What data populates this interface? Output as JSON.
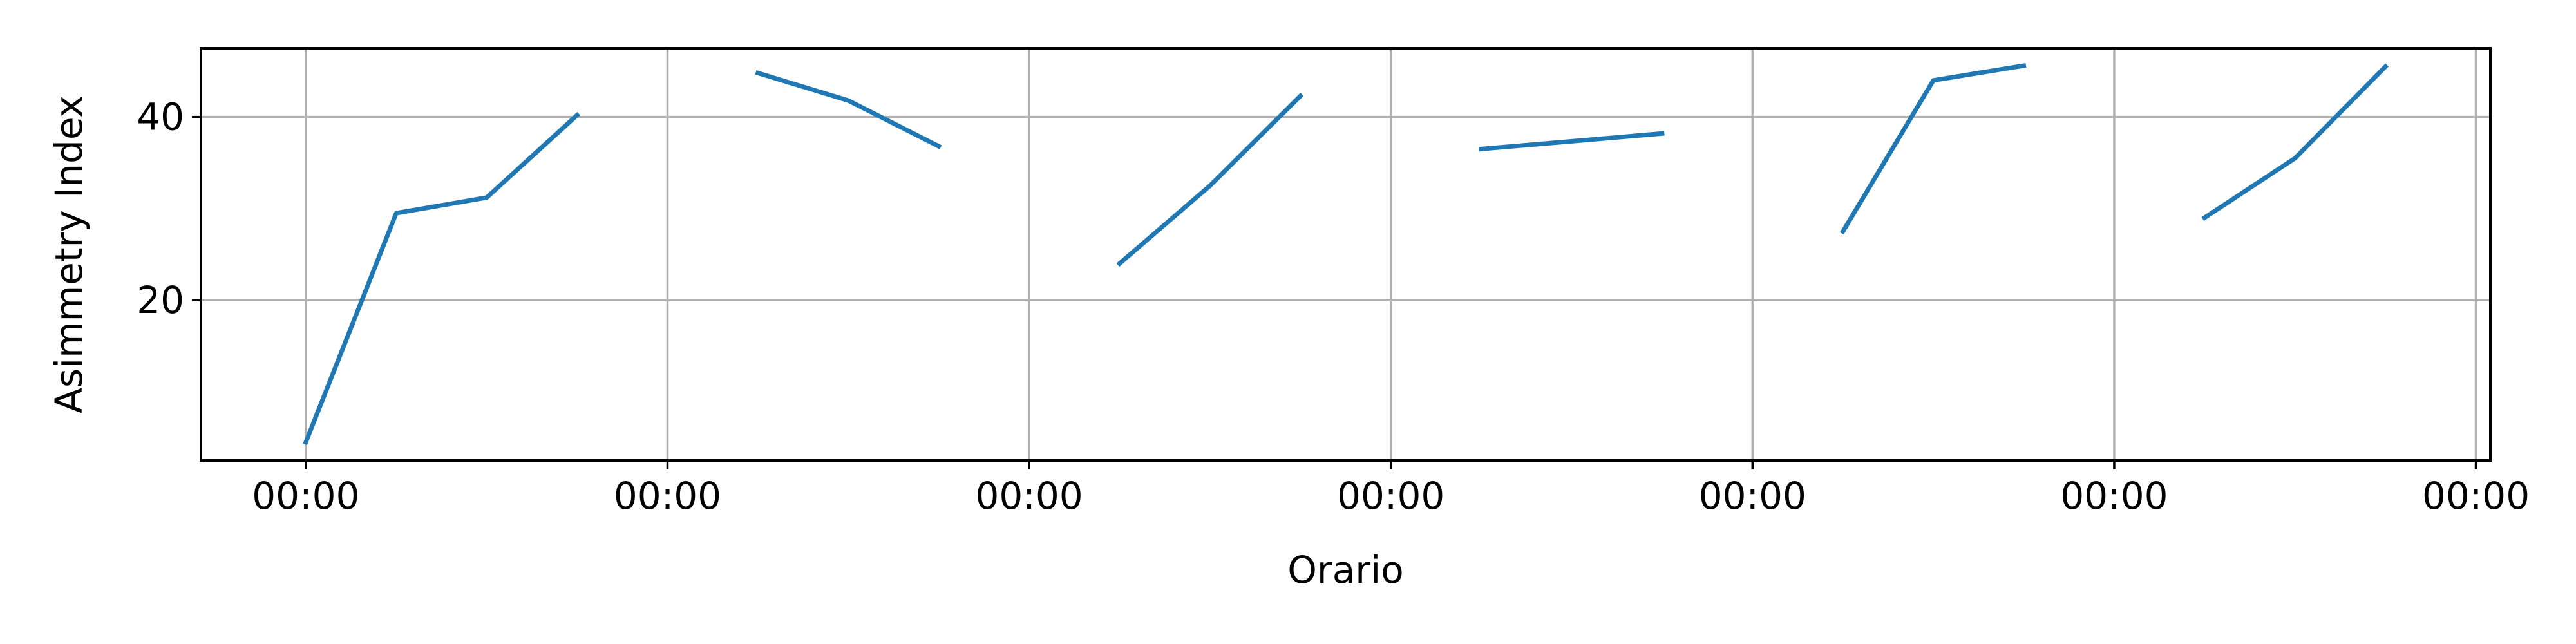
{
  "chart_data": {
    "type": "line",
    "xlabel": "Orario",
    "ylabel": "Asimmetry Index",
    "grid": true,
    "x_tick_labels": [
      "00:00",
      "00:00",
      "00:00",
      "00:00",
      "00:00",
      "00:00",
      "00:00"
    ],
    "y_ticks": [
      20,
      40
    ],
    "ylim": [
      2.5,
      47.5
    ],
    "xlim": [
      -0.29,
      6.04
    ],
    "line_color": "#1f77b4",
    "segments": [
      {
        "x": [
          0.0,
          0.25,
          0.5,
          0.75
        ],
        "y": [
          4.5,
          29.5,
          31.2,
          40.2
        ]
      },
      {
        "x": [
          1.25,
          1.5,
          1.75
        ],
        "y": [
          44.8,
          41.8,
          36.8
        ]
      },
      {
        "x": [
          2.25,
          2.5,
          2.75
        ],
        "y": [
          24.0,
          32.5,
          42.3
        ]
      },
      {
        "x": [
          3.25,
          3.75
        ],
        "y": [
          36.5,
          38.2
        ]
      },
      {
        "x": [
          4.25,
          4.5,
          4.75
        ],
        "y": [
          27.5,
          44.0,
          45.6
        ]
      },
      {
        "x": [
          5.25,
          5.5,
          5.75
        ],
        "y": [
          29.0,
          35.5,
          45.5
        ]
      }
    ]
  }
}
